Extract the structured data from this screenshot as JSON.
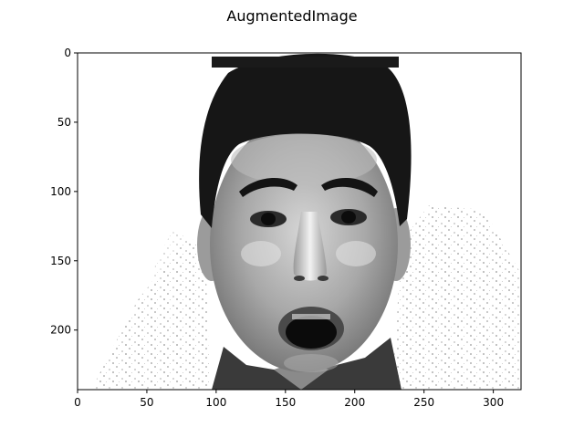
{
  "chart_data": {
    "type": "image",
    "title": "AugmentedImage",
    "colormap": "gray",
    "image_shape": [
      243,
      320
    ],
    "xlim": [
      0,
      320
    ],
    "ylim": [
      243,
      0
    ],
    "x_ticks": [
      0,
      50,
      100,
      150,
      200,
      250,
      300
    ],
    "y_ticks": [
      0,
      50,
      100,
      150,
      200
    ],
    "xlabel": "",
    "ylabel": "",
    "grid": false,
    "legend": "none"
  }
}
